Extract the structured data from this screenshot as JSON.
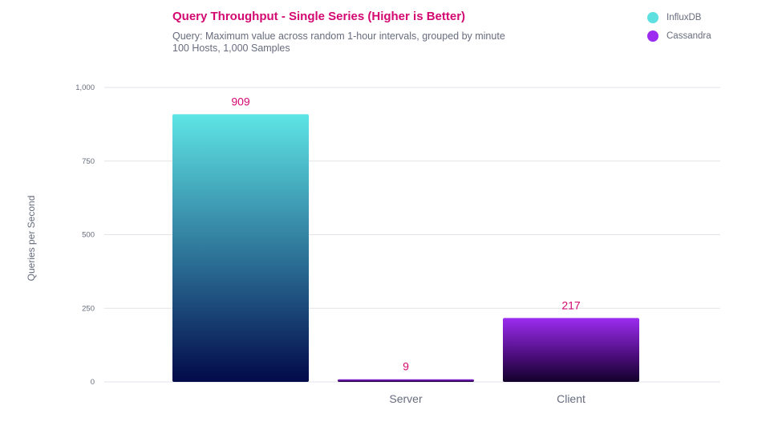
{
  "chart_data": {
    "type": "bar",
    "title": "Query Throughput - Single Series (Higher is Better)",
    "subtitle_lines": [
      "Query: Maximum value across random 1-hour intervals, grouped by minute",
      "100 Hosts, 1,000 Samples"
    ],
    "ylabel": "Queries per Second",
    "ylim": [
      0,
      1000
    ],
    "y_ticks": [
      {
        "value": 0,
        "label": "0"
      },
      {
        "value": 250,
        "label": "250"
      },
      {
        "value": 500,
        "label": "500"
      },
      {
        "value": 750,
        "label": "750"
      },
      {
        "value": 1000,
        "label": "1,000"
      }
    ],
    "categories": [
      "",
      "Server",
      "Client"
    ],
    "series": [
      {
        "name": "InfluxDB",
        "color": "#5ee0e0",
        "gradient": [
          "#5ee5e5",
          "#020a4a"
        ],
        "bar_values": [
          909,
          null,
          null
        ]
      },
      {
        "name": "Cassandra",
        "color": "#9b2cf0",
        "gradient": [
          "#9b2cf0",
          "#12002a"
        ],
        "bar_values": [
          null,
          9,
          217
        ]
      }
    ],
    "bars": [
      {
        "series": "InfluxDB",
        "value": 909,
        "label": "909"
      },
      {
        "series": "Cassandra",
        "value": 9,
        "label": "9"
      },
      {
        "series": "Cassandra",
        "value": 217,
        "label": "217"
      }
    ],
    "x_labels": [
      "Server",
      "Client"
    ],
    "legend_position": "top-right",
    "grid": true,
    "data_label_color": "#d30971"
  }
}
